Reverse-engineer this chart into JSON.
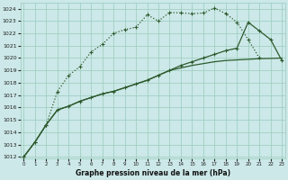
{
  "xlabel": "Graphe pression niveau de la mer (hPa)",
  "background_color": "#cce8e8",
  "grid_color": "#99ccbb",
  "line_color": "#2d5a2d",
  "x_values": [
    0,
    1,
    2,
    3,
    4,
    5,
    6,
    7,
    8,
    9,
    10,
    11,
    12,
    13,
    14,
    15,
    16,
    17,
    18,
    19,
    20,
    21,
    22,
    23
  ],
  "series_dotted": [
    1012.0,
    1013.2,
    1014.6,
    1017.3,
    1018.6,
    1019.3,
    1020.5,
    1021.1,
    1022.0,
    1022.3,
    1022.5,
    1023.5,
    1023.0,
    1023.7,
    1023.65,
    1023.6,
    1023.65,
    1024.05,
    1023.6,
    1022.9,
    1021.5,
    1020.0,
    null,
    null
  ],
  "series_solid1": [
    1012.0,
    1013.2,
    1014.6,
    1015.8,
    1016.1,
    1016.5,
    1016.8,
    1017.1,
    1017.3,
    1017.6,
    1017.9,
    1018.2,
    1018.6,
    1019.0,
    1019.4,
    1019.7,
    1020.0,
    1020.3,
    1020.6,
    1020.8,
    1022.9,
    1022.2,
    1021.5,
    1019.8
  ],
  "series_solid2": [
    1012.0,
    1013.2,
    1014.6,
    1015.8,
    1016.1,
    1016.5,
    1016.8,
    1017.1,
    1017.3,
    1017.6,
    1017.9,
    1018.2,
    1018.6,
    1019.0,
    1019.2,
    1019.4,
    1019.55,
    1019.7,
    1019.8,
    1019.85,
    1019.9,
    1019.95,
    1019.97,
    1020.0
  ],
  "ylim_min": 1012,
  "ylim_max": 1024,
  "yticks": [
    1012,
    1013,
    1014,
    1015,
    1016,
    1017,
    1018,
    1019,
    1020,
    1021,
    1022,
    1023,
    1024
  ],
  "xticks": [
    0,
    1,
    2,
    3,
    4,
    5,
    6,
    7,
    8,
    9,
    10,
    11,
    12,
    13,
    14,
    15,
    16,
    17,
    18,
    19,
    20,
    21,
    22,
    23
  ]
}
